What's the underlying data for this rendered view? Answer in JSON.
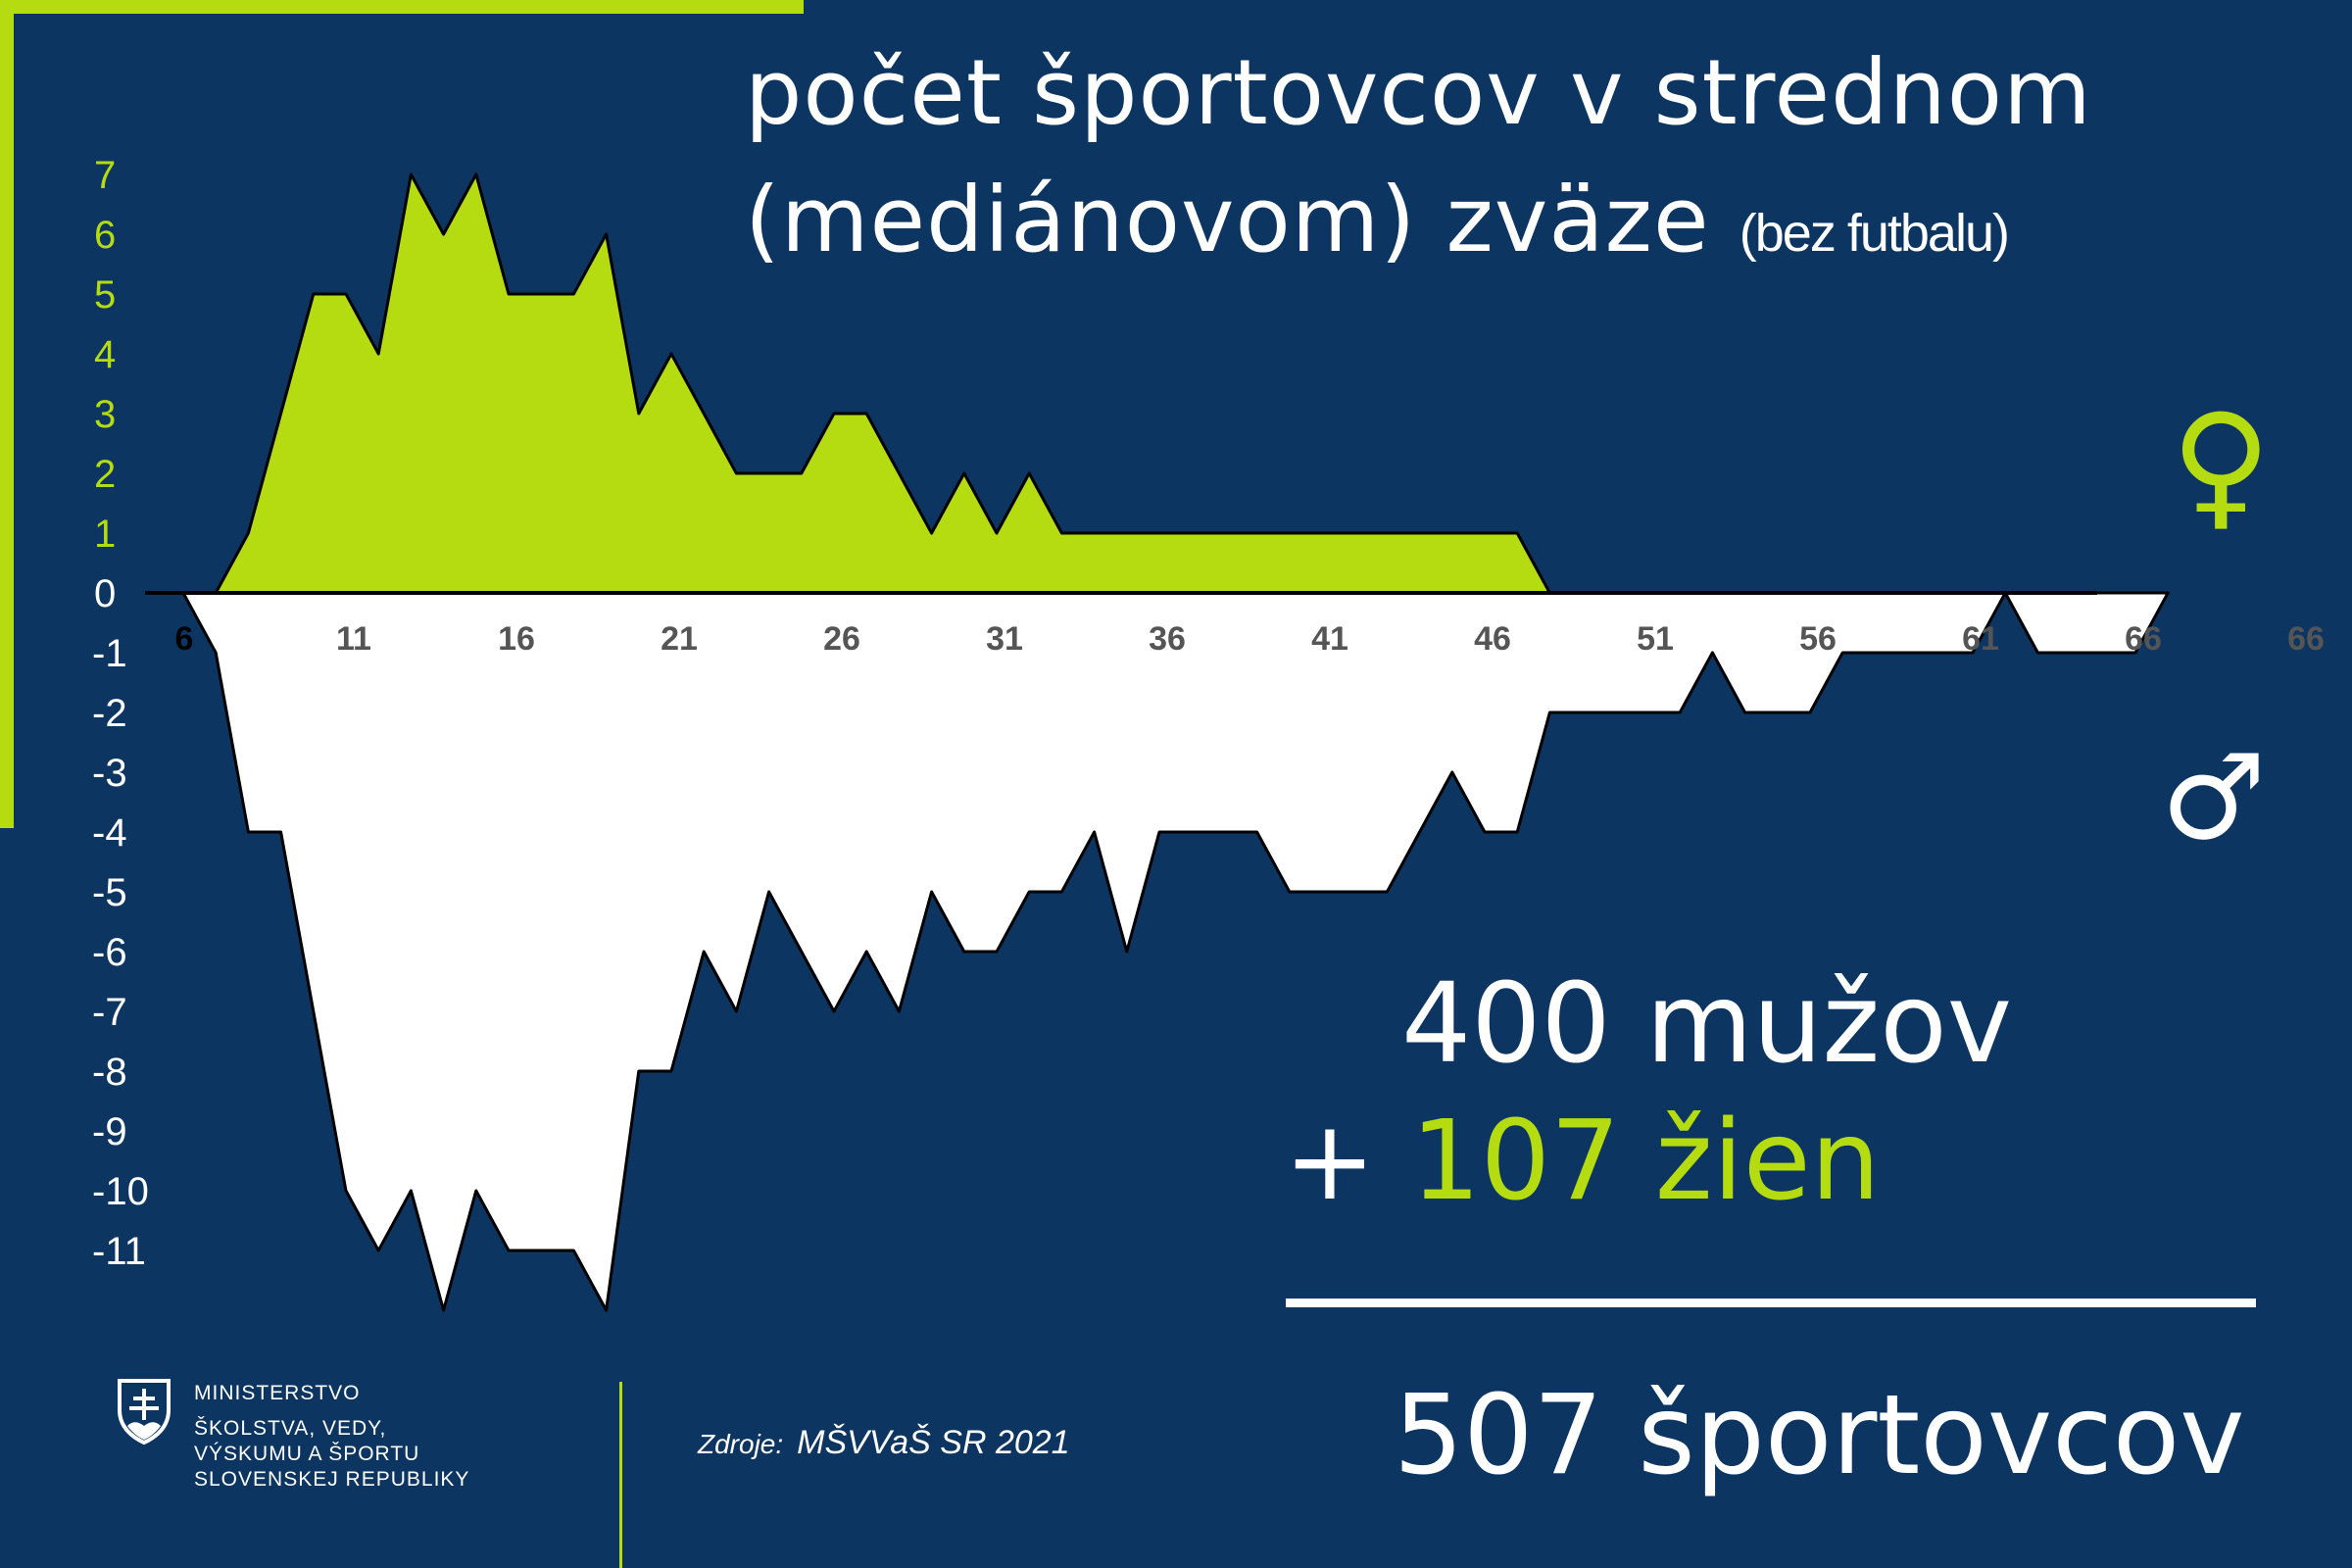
{
  "title": {
    "line1": "počet športovcov v strednom",
    "line2": "(mediánovom) zväze",
    "note": "(bez futbalu)"
  },
  "chart_data": {
    "type": "area",
    "x_tick_labels": [
      "6",
      "11",
      "16",
      "21",
      "26",
      "31",
      "36",
      "41",
      "46",
      "51",
      "56",
      "61",
      "66",
      "66"
    ],
    "y_tick_labels": [
      "7",
      "6",
      "5",
      "4",
      "3",
      "2",
      "1",
      "0",
      "-1",
      "-2",
      "-3",
      "-4",
      "-5",
      "-6",
      "-7",
      "-8",
      "-9",
      "-10",
      "-11"
    ],
    "ylim": [
      -11.5,
      7.5
    ],
    "series": [
      {
        "key": "women",
        "color": "#b5dc10",
        "points": [
          [
            6,
            0
          ],
          [
            7,
            0
          ],
          [
            8,
            1
          ],
          [
            9,
            3
          ],
          [
            10,
            5
          ],
          [
            11,
            5
          ],
          [
            12,
            4
          ],
          [
            13,
            7
          ],
          [
            14,
            6
          ],
          [
            15,
            7
          ],
          [
            16,
            5
          ],
          [
            17,
            5
          ],
          [
            18,
            5
          ],
          [
            19,
            6
          ],
          [
            20,
            3
          ],
          [
            21,
            4
          ],
          [
            22,
            3
          ],
          [
            23,
            2
          ],
          [
            24,
            2
          ],
          [
            25,
            2
          ],
          [
            26,
            3
          ],
          [
            27,
            3
          ],
          [
            28,
            2
          ],
          [
            29,
            1
          ],
          [
            30,
            2
          ],
          [
            31,
            1
          ],
          [
            32,
            2
          ],
          [
            33,
            1
          ],
          [
            34,
            1
          ],
          [
            35,
            1
          ],
          [
            36,
            1
          ],
          [
            37,
            1
          ],
          [
            38,
            1
          ],
          [
            39,
            1
          ],
          [
            40,
            1
          ],
          [
            41,
            1
          ],
          [
            42,
            1
          ],
          [
            43,
            1
          ],
          [
            44,
            1
          ],
          [
            45,
            1
          ],
          [
            46,
            1
          ],
          [
            47,
            1
          ],
          [
            48,
            0
          ]
        ]
      },
      {
        "key": "men",
        "color": "#ffffff",
        "points": [
          [
            6,
            0
          ],
          [
            7,
            -1
          ],
          [
            8,
            -4
          ],
          [
            9,
            -4
          ],
          [
            10,
            -7
          ],
          [
            11,
            -10
          ],
          [
            12,
            -11
          ],
          [
            13,
            -10
          ],
          [
            14,
            -12
          ],
          [
            15,
            -10
          ],
          [
            16,
            -11
          ],
          [
            17,
            -11
          ],
          [
            18,
            -11
          ],
          [
            19,
            -12
          ],
          [
            20,
            -8
          ],
          [
            21,
            -8
          ],
          [
            22,
            -6
          ],
          [
            23,
            -7
          ],
          [
            24,
            -5
          ],
          [
            25,
            -6
          ],
          [
            26,
            -7
          ],
          [
            27,
            -6
          ],
          [
            28,
            -7
          ],
          [
            29,
            -5
          ],
          [
            30,
            -6
          ],
          [
            31,
            -6
          ],
          [
            32,
            -5
          ],
          [
            33,
            -5
          ],
          [
            34,
            -4
          ],
          [
            35,
            -6
          ],
          [
            36,
            -4
          ],
          [
            37,
            -4
          ],
          [
            38,
            -4
          ],
          [
            39,
            -4
          ],
          [
            40,
            -5
          ],
          [
            41,
            -5
          ],
          [
            42,
            -5
          ],
          [
            43,
            -5
          ],
          [
            44,
            -4
          ],
          [
            45,
            -3
          ],
          [
            46,
            -4
          ],
          [
            47,
            -4
          ],
          [
            48,
            -2
          ],
          [
            49,
            -2
          ],
          [
            50,
            -2
          ],
          [
            51,
            -2
          ],
          [
            52,
            -2
          ],
          [
            53,
            -1
          ],
          [
            54,
            -2
          ],
          [
            55,
            -2
          ],
          [
            56,
            -2
          ],
          [
            57,
            -1
          ],
          [
            58,
            -1
          ],
          [
            59,
            -1
          ],
          [
            60,
            -1
          ],
          [
            61,
            -1
          ],
          [
            62,
            0
          ],
          [
            63,
            -1
          ],
          [
            64,
            -1
          ],
          [
            65,
            -1
          ],
          [
            66,
            -1
          ],
          [
            67,
            0
          ]
        ]
      }
    ]
  },
  "symbols": {
    "female": "♀",
    "male": "♂"
  },
  "totals": {
    "men": "400 mužov",
    "plus": "+",
    "women": "107 žien",
    "all": "507 športovcov"
  },
  "logo": {
    "line1": "MINISTERSTVO",
    "line2": "ŠKOLSTVA, VEDY,",
    "line3": "VÝSKUMU A ŠPORTU",
    "line4": "SLOVENSKEJ REPUBLIKY"
  },
  "source": {
    "label": "Zdroje:",
    "value": "MŠVVaŠ SR  2021"
  }
}
